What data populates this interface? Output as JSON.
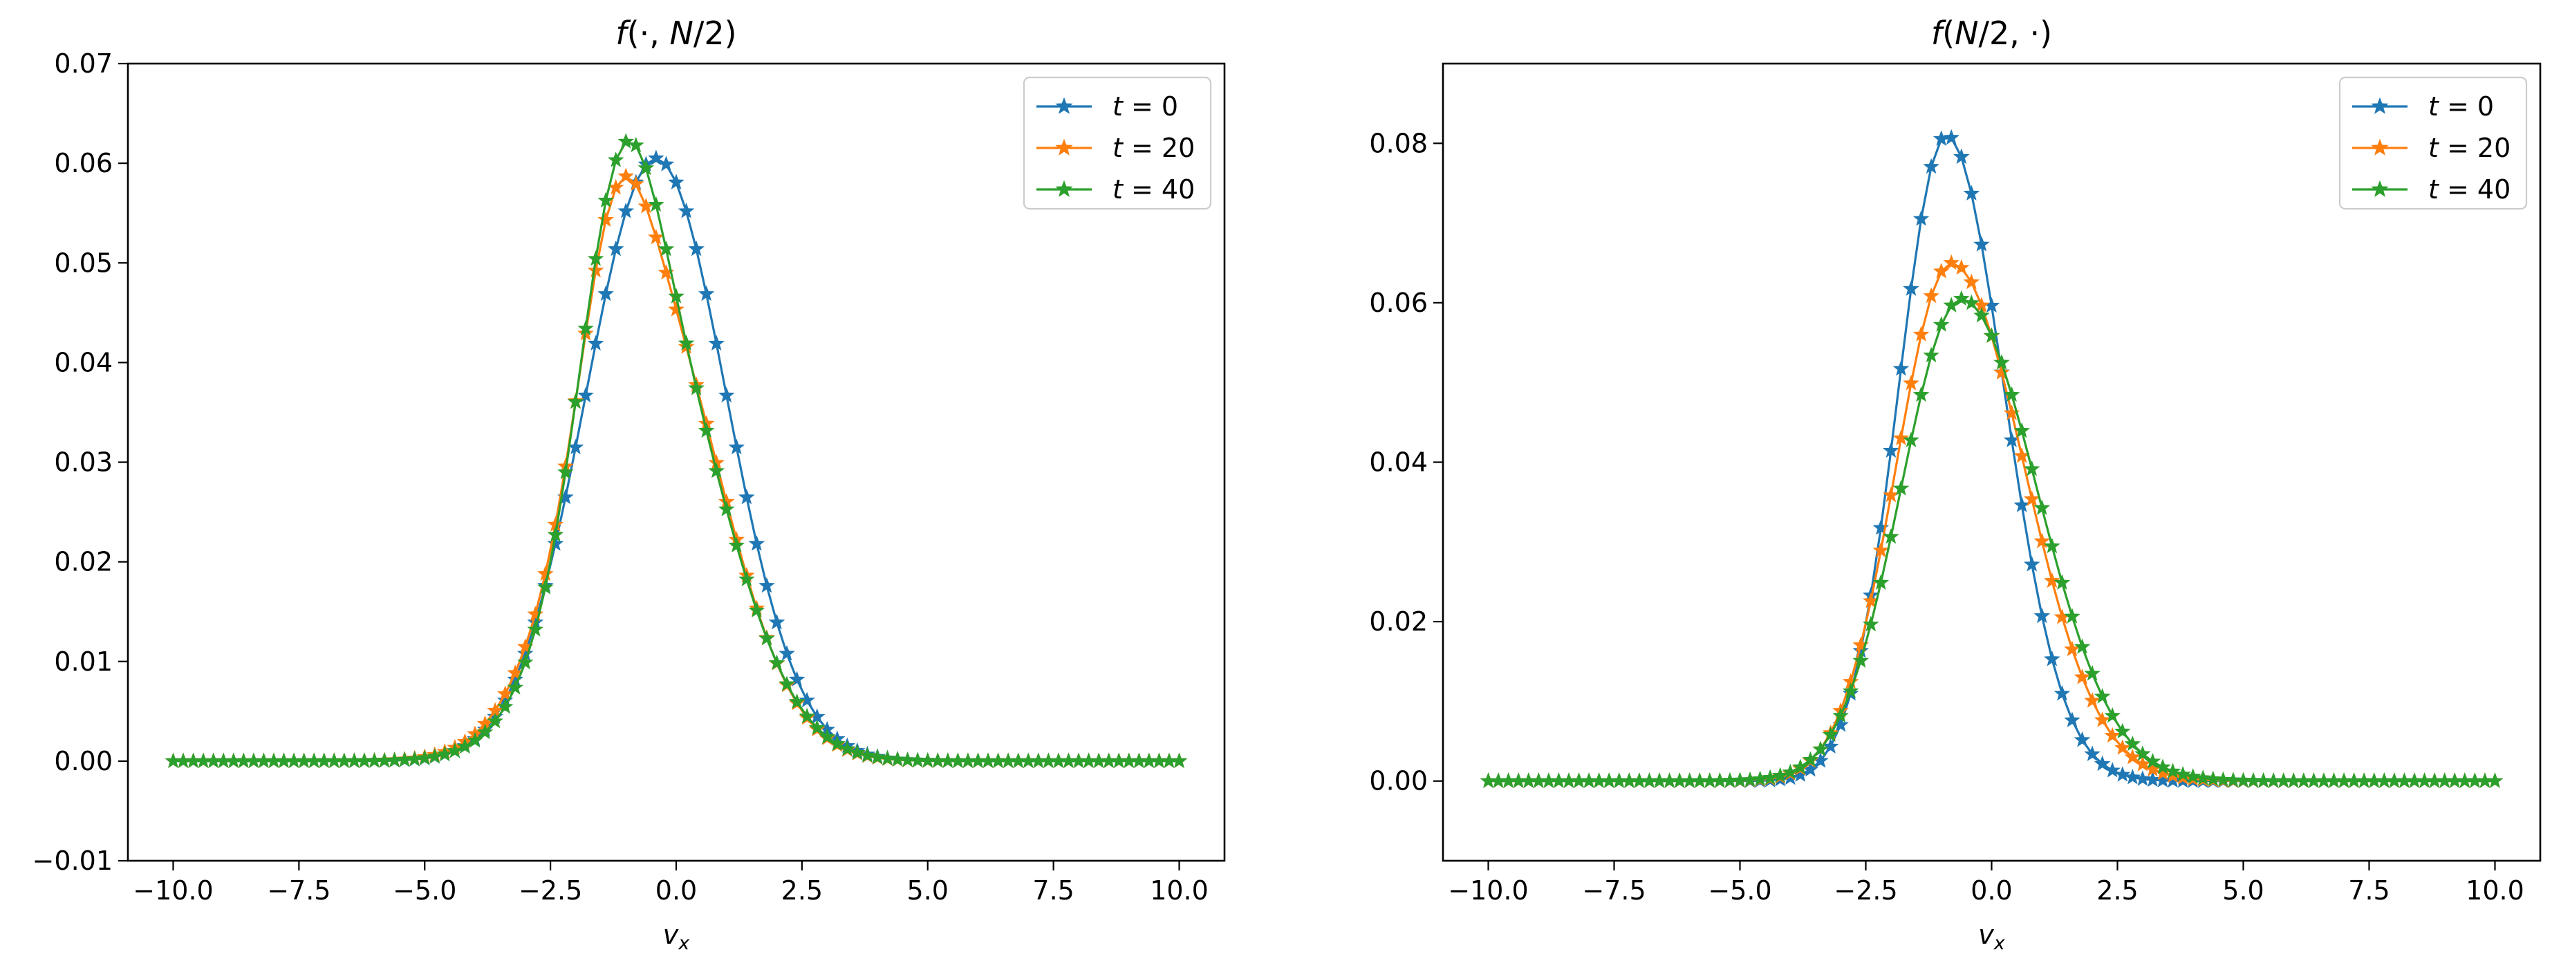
{
  "chart_data": [
    {
      "type": "line",
      "title": "f(·, N/2)",
      "xlabel": "v_x",
      "ylabel": "",
      "xlim": [
        -10.9,
        10.9
      ],
      "ylim": [
        -0.01,
        0.07
      ],
      "xticks": [
        -10.0,
        -7.5,
        -5.0,
        -2.5,
        0.0,
        2.5,
        5.0,
        7.5,
        10.0
      ],
      "xtick_labels": [
        "−10.0",
        "−7.5",
        "−5.0",
        "−2.5",
        "0.0",
        "2.5",
        "5.0",
        "7.5",
        "10.0"
      ],
      "yticks": [
        -0.01,
        0.0,
        0.01,
        0.02,
        0.03,
        0.04,
        0.05,
        0.06,
        0.07
      ],
      "ytick_labels": [
        "−0.01",
        "0.00",
        "0.01",
        "0.02",
        "0.03",
        "0.04",
        "0.05",
        "0.06",
        "0.07"
      ],
      "legend_position": "top-right",
      "x": {
        "start": -10.0,
        "stop": 10.0,
        "count": 101
      },
      "series": [
        {
          "name": "t = 0",
          "t": "0",
          "color": "#1f77b4",
          "marker": "star",
          "components": [
            {
              "amp": 0.0605,
              "center": -0.4,
              "sigma": 1.4
            }
          ]
        },
        {
          "name": "t = 20",
          "t": "20",
          "color": "#ff7f0e",
          "marker": "star",
          "components": [
            {
              "amp": 0.046,
              "center": -0.55,
              "sigma": 1.45
            },
            {
              "amp": 0.016,
              "center": -1.25,
              "sigma": 0.65
            }
          ]
        },
        {
          "name": "t = 40",
          "t": "40",
          "color": "#2ca02c",
          "marker": "star",
          "components": [
            {
              "amp": 0.041,
              "center": -0.45,
              "sigma": 1.45
            },
            {
              "amp": 0.0245,
              "center": -1.15,
              "sigma": 0.75
            }
          ]
        }
      ]
    },
    {
      "type": "line",
      "title": "f(N/2, ·)",
      "xlabel": "v_x",
      "ylabel": "",
      "xlim": [
        -10.9,
        10.9
      ],
      "ylim": [
        -0.01,
        0.09
      ],
      "xticks": [
        -10.0,
        -7.5,
        -5.0,
        -2.5,
        0.0,
        2.5,
        5.0,
        7.5,
        10.0
      ],
      "xtick_labels": [
        "−10.0",
        "−7.5",
        "−5.0",
        "−2.5",
        "0.0",
        "2.5",
        "5.0",
        "7.5",
        "10.0"
      ],
      "yticks": [
        0.0,
        0.02,
        0.04,
        0.06,
        0.08
      ],
      "ytick_labels": [
        "0.00",
        "0.02",
        "0.04",
        "0.06",
        "0.08"
      ],
      "legend_position": "top-right",
      "x": {
        "start": -10.0,
        "stop": 10.0,
        "count": 101
      },
      "series": [
        {
          "name": "t = 0",
          "t": "0",
          "color": "#1f77b4",
          "marker": "star",
          "components": [
            {
              "amp": 0.081,
              "center": -0.9,
              "sigma": 0.95,
              "sigma_right": 1.15
            }
          ]
        },
        {
          "name": "t = 20",
          "t": "20",
          "color": "#ff7f0e",
          "marker": "star",
          "components": [
            {
              "amp": 0.065,
              "center": -0.8,
              "sigma": 1.1,
              "sigma_right": 1.45
            }
          ]
        },
        {
          "name": "t = 40",
          "t": "40",
          "color": "#2ca02c",
          "marker": "star",
          "components": [
            {
              "amp": 0.0605,
              "center": -0.6,
              "sigma": 1.2,
              "sigma_right": 1.5
            }
          ]
        }
      ]
    }
  ]
}
